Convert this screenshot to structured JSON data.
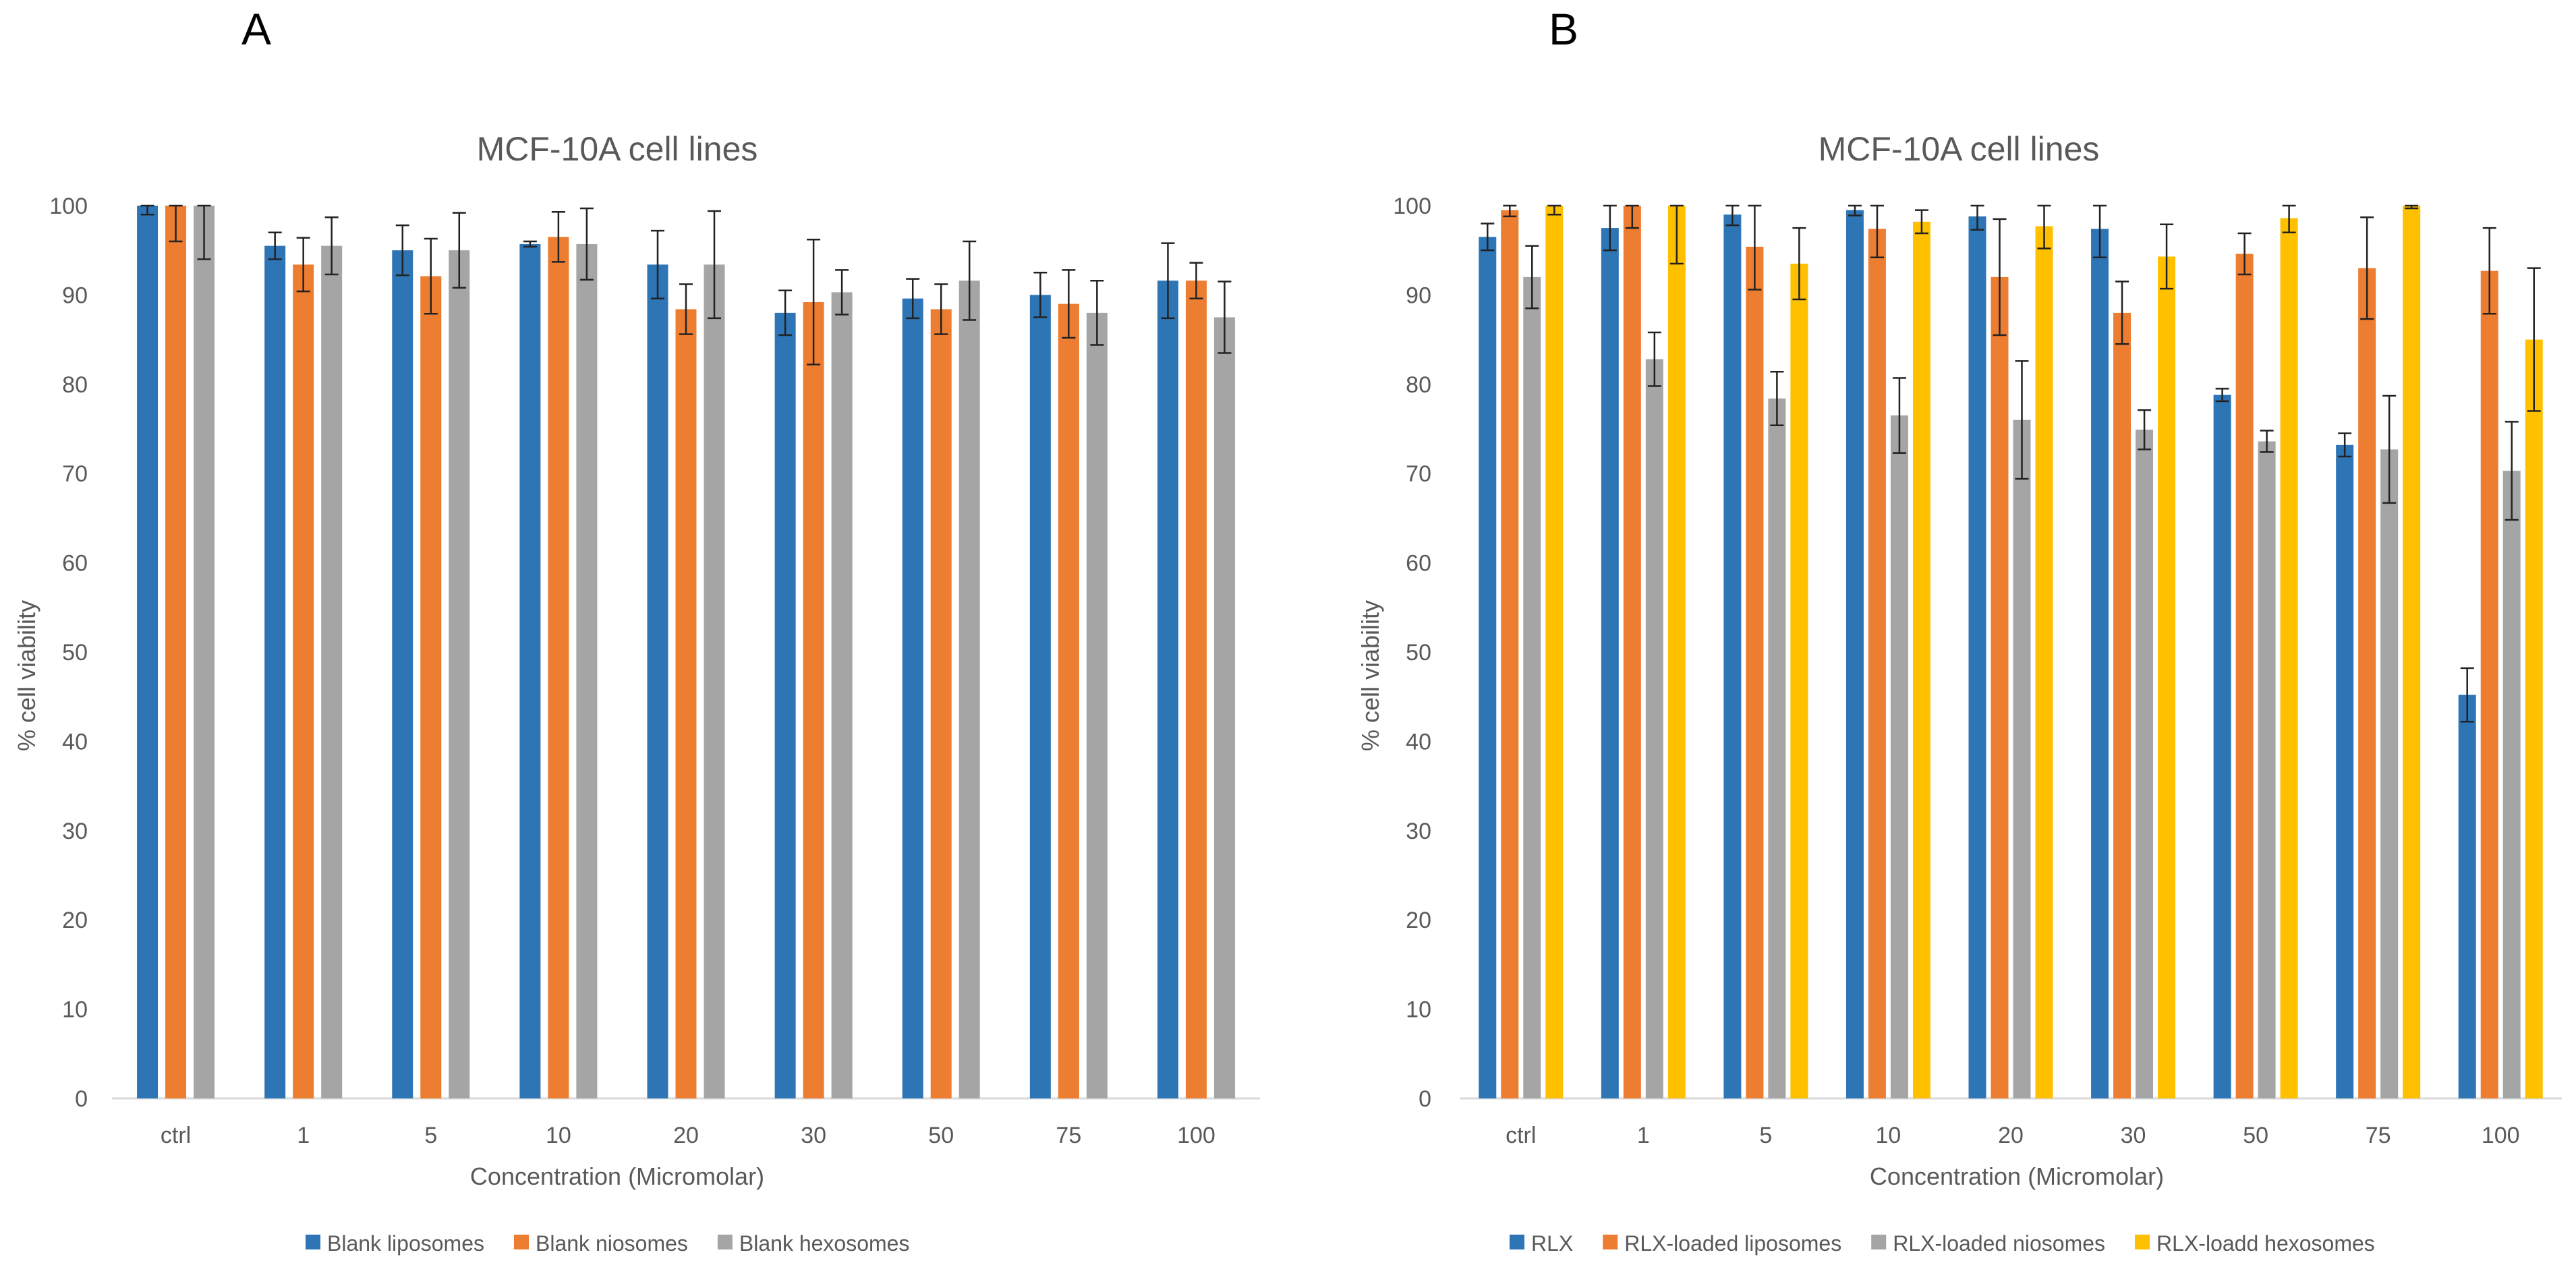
{
  "panels": [
    {
      "letter": "A",
      "legend": [
        "Blank liposomes",
        "Blank niosomes",
        "Blank hexosomes"
      ]
    },
    {
      "letter": "B",
      "legend": [
        "RLX",
        "RLX-loaded liposomes",
        "RLX-loaded niosomes",
        "RLX-loadd hexosomes"
      ]
    }
  ],
  "chart_data": [
    {
      "type": "bar",
      "title": "MCF-10A cell lines",
      "xlabel": "Concentration (Micromolar)",
      "ylabel": "% cell viability",
      "ylim": [
        0,
        100
      ],
      "yticks": [
        0,
        10,
        20,
        30,
        40,
        50,
        60,
        70,
        80,
        90,
        100
      ],
      "categories": [
        "ctrl",
        "1",
        "5",
        "10",
        "20",
        "30",
        "50",
        "75",
        "100"
      ],
      "grid": false,
      "legend_position": "bottom",
      "series": [
        {
          "name": "Blank liposomes",
          "color": "#2E75B6",
          "values": [
            100,
            95.5,
            95,
            95.7,
            93.4,
            88,
            89.6,
            90,
            91.6
          ],
          "errors": [
            1,
            1.5,
            2.8,
            0.3,
            3.8,
            2.5,
            2.2,
            2.5,
            4.2
          ]
        },
        {
          "name": "Blank niosomes",
          "color": "#ED7D31",
          "values": [
            100,
            93.4,
            92.1,
            96.5,
            88.4,
            89.2,
            88.4,
            89,
            91.6
          ],
          "errors": [
            4,
            3,
            4.2,
            2.8,
            2.8,
            7,
            2.8,
            3.8,
            2
          ]
        },
        {
          "name": "Blank hexosomes",
          "color": "#A5A5A5",
          "values": [
            100,
            95.5,
            95,
            95.7,
            93.4,
            90.3,
            91.6,
            88,
            87.5
          ],
          "errors": [
            6,
            3.2,
            4.2,
            4,
            6,
            2.5,
            4.4,
            3.6,
            4
          ]
        }
      ]
    },
    {
      "type": "bar",
      "title": "MCF-10A cell lines",
      "xlabel": "Concentration (Micromolar)",
      "ylabel": "% cell viability",
      "ylim": [
        0,
        100
      ],
      "yticks": [
        0,
        10,
        20,
        30,
        40,
        50,
        60,
        70,
        80,
        90,
        100
      ],
      "categories": [
        "ctrl",
        "1",
        "5",
        "10",
        "20",
        "30",
        "50",
        "75",
        "100"
      ],
      "grid": false,
      "legend_position": "bottom",
      "series": [
        {
          "name": "RLX",
          "color": "#2E75B6",
          "values": [
            96.5,
            97.5,
            99,
            99.5,
            98.8,
            97.4,
            78.8,
            73.2,
            45.2
          ],
          "errors": [
            1.5,
            2.5,
            1.2,
            0.6,
            1.5,
            3.2,
            0.7,
            1.3,
            3
          ]
        },
        {
          "name": "RLX-loaded liposomes",
          "color": "#ED7D31",
          "values": [
            99.5,
            100,
            95.4,
            97.4,
            92,
            88,
            94.6,
            93,
            92.7
          ],
          "errors": [
            0.7,
            2.5,
            4.8,
            3.2,
            6.5,
            3.5,
            2.3,
            5.7,
            4.8
          ]
        },
        {
          "name": "RLX-loaded niosomes",
          "color": "#A5A5A5",
          "values": [
            92,
            82.8,
            78.4,
            76.5,
            76,
            74.9,
            73.6,
            72.7,
            70.3
          ],
          "errors": [
            3.5,
            3,
            3,
            4.2,
            6.6,
            2.2,
            1.2,
            6,
            5.5
          ]
        },
        {
          "name": "RLX-loadd hexosomes",
          "color": "#FFC000",
          "values": [
            100,
            100,
            93.5,
            98.2,
            97.7,
            94.3,
            98.6,
            100,
            85
          ],
          "errors": [
            1,
            6.5,
            4,
            1.3,
            2.5,
            3.6,
            1.6,
            0.3,
            8
          ]
        }
      ]
    }
  ]
}
